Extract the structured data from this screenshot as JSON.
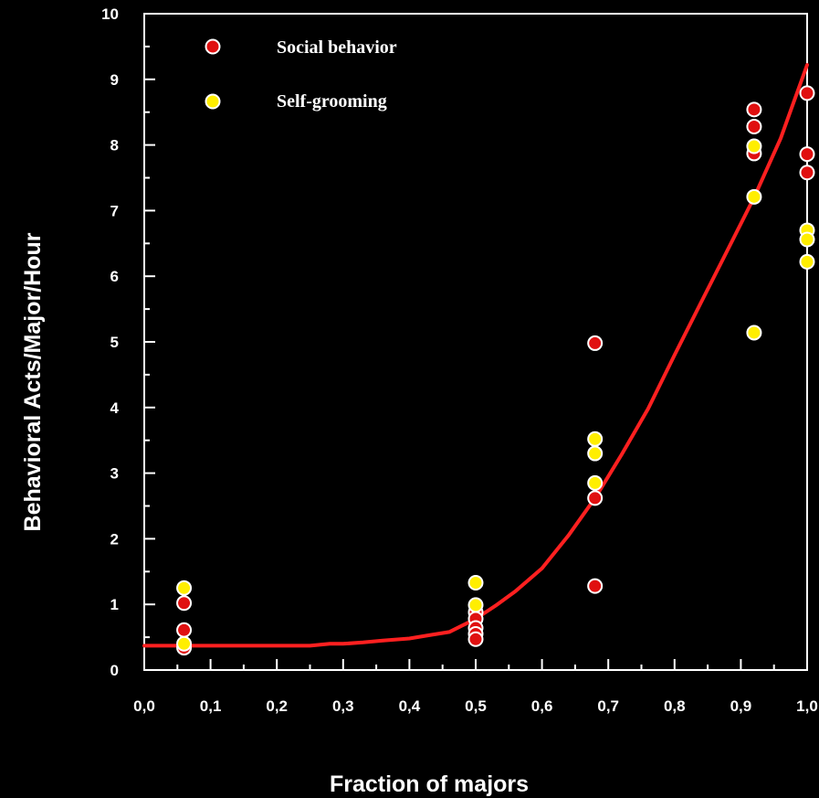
{
  "chart_data": {
    "type": "scatter",
    "xlabel": "Fraction of majors",
    "ylabel": "Behavioral Acts/Major/Hour",
    "xlim": [
      0,
      1
    ],
    "ylim": [
      0,
      10
    ],
    "x_ticks": [
      "0,0",
      "0,1",
      "0,2",
      "0,3",
      "0,4",
      "0,5",
      "0,6",
      "0,7",
      "0,8",
      "0,9",
      "1,0"
    ],
    "y_ticks": [
      "0",
      "1",
      "2",
      "3",
      "4",
      "5",
      "6",
      "7",
      "8",
      "9",
      "10"
    ],
    "grid": false,
    "legend_position": "top-left",
    "series": [
      {
        "name": "Social behavior",
        "color": "#e01010",
        "points": [
          [
            0.06,
            1.02
          ],
          [
            0.06,
            0.61
          ],
          [
            0.06,
            0.34
          ],
          [
            0.5,
            0.88
          ],
          [
            0.5,
            0.78
          ],
          [
            0.5,
            0.64
          ],
          [
            0.5,
            0.55
          ],
          [
            0.5,
            0.47
          ],
          [
            0.68,
            4.98
          ],
          [
            0.68,
            2.62
          ],
          [
            0.68,
            1.28
          ],
          [
            0.92,
            8.54
          ],
          [
            0.92,
            8.28
          ],
          [
            0.92,
            7.87
          ],
          [
            1.0,
            8.79
          ],
          [
            1.0,
            7.86
          ],
          [
            1.0,
            7.58
          ]
        ]
      },
      {
        "name": "Self-grooming",
        "color": "#ffee00",
        "points": [
          [
            0.06,
            1.25
          ],
          [
            0.06,
            0.4
          ],
          [
            0.5,
            1.33
          ],
          [
            0.5,
            0.99
          ],
          [
            0.68,
            3.52
          ],
          [
            0.68,
            3.3
          ],
          [
            0.68,
            2.85
          ],
          [
            0.92,
            7.98
          ],
          [
            0.92,
            7.21
          ],
          [
            0.92,
            5.14
          ],
          [
            1.0,
            6.7
          ],
          [
            1.0,
            6.56
          ],
          [
            1.0,
            6.22
          ]
        ]
      }
    ],
    "fit_line": {
      "color": "#ff2020",
      "x": [
        0.0,
        0.1,
        0.2,
        0.25,
        0.28,
        0.3,
        0.33,
        0.36,
        0.4,
        0.43,
        0.46,
        0.48,
        0.5,
        0.53,
        0.56,
        0.6,
        0.64,
        0.68,
        0.72,
        0.76,
        0.8,
        0.84,
        0.88,
        0.92,
        0.96,
        1.0
      ],
      "y": [
        0.37,
        0.37,
        0.37,
        0.37,
        0.4,
        0.4,
        0.42,
        0.45,
        0.48,
        0.53,
        0.58,
        0.68,
        0.78,
        0.98,
        1.2,
        1.55,
        2.05,
        2.62,
        3.28,
        3.98,
        4.8,
        5.6,
        6.4,
        7.2,
        8.1,
        9.22
      ]
    }
  }
}
